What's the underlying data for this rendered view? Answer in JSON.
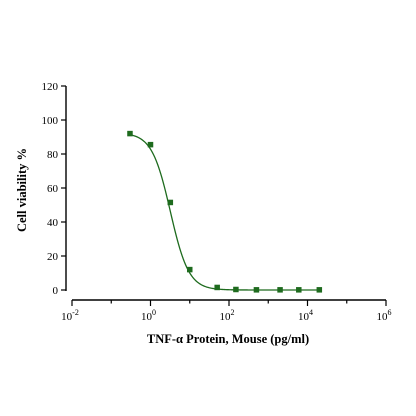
{
  "chart_data": {
    "type": "scatter",
    "title": "",
    "xlabel": "TNF-α Protein, Mouse (pg/ml)",
    "ylabel": "Cell viability %",
    "x_scale": "log",
    "xlim_exp": [
      -2,
      6
    ],
    "x_tick_exponents": [
      -2,
      0,
      2,
      4,
      6
    ],
    "x_tick_base": "10",
    "ylim": [
      0,
      120
    ],
    "y_ticks": [
      0,
      20,
      40,
      60,
      80,
      100,
      120
    ],
    "grid": false,
    "series": [
      {
        "x": [
          0.3,
          1.0,
          3.2,
          10,
          50,
          150,
          500,
          2000,
          6000,
          20000
        ],
        "y": [
          92,
          85.5,
          51.5,
          12,
          1.5,
          0.3,
          0.1,
          0.1,
          0.1,
          0.1
        ],
        "fit": {
          "model": "4PL",
          "top": 92.5,
          "bottom": 0,
          "ic50": 3.2,
          "hill": 1.85
        }
      }
    ],
    "color": "#1e6b1e"
  }
}
